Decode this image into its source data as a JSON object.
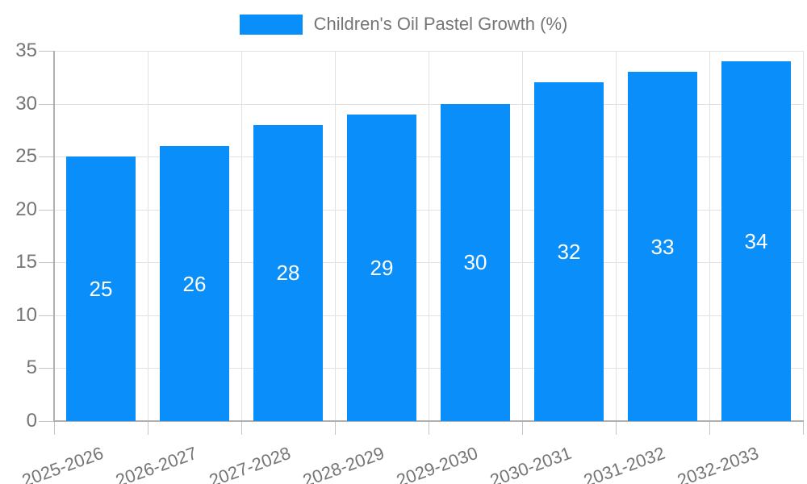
{
  "legend": {
    "label": "Children's Oil Pastel Growth (%)"
  },
  "chart_data": {
    "type": "bar",
    "title": "Children's Oil Pastel Growth (%)",
    "categories": [
      "2025-2026",
      "2026-2027",
      "2027-2028",
      "2028-2029",
      "2029-2030",
      "2030-2031",
      "2031-2032",
      "2032-2033"
    ],
    "values": [
      25,
      26,
      28,
      29,
      30,
      32,
      33,
      34
    ],
    "value_labels": [
      "25",
      "26",
      "28",
      "29",
      "30",
      "32",
      "33",
      "34"
    ],
    "series_name": "Children's Oil Pastel Growth (%)",
    "xlabel": "",
    "ylabel": "",
    "ylim": [
      0,
      35
    ],
    "yticks": [
      0,
      5,
      10,
      15,
      20,
      25,
      30,
      35
    ],
    "ytick_labels": [
      "0",
      "5",
      "10",
      "15",
      "20",
      "25",
      "30",
      "35"
    ],
    "grid": true,
    "legend_position": "top-center",
    "x_label_rotation_deg": -20,
    "colors": {
      "bar": "#0a8ef9",
      "value_label": "#ffffff",
      "axis_text": "#757575",
      "legend_text": "#757575",
      "gridline": "#e2e2e2",
      "tick": "#c4c4c4",
      "axis_line": "#b0b0b0",
      "background": "#ffffff"
    }
  }
}
